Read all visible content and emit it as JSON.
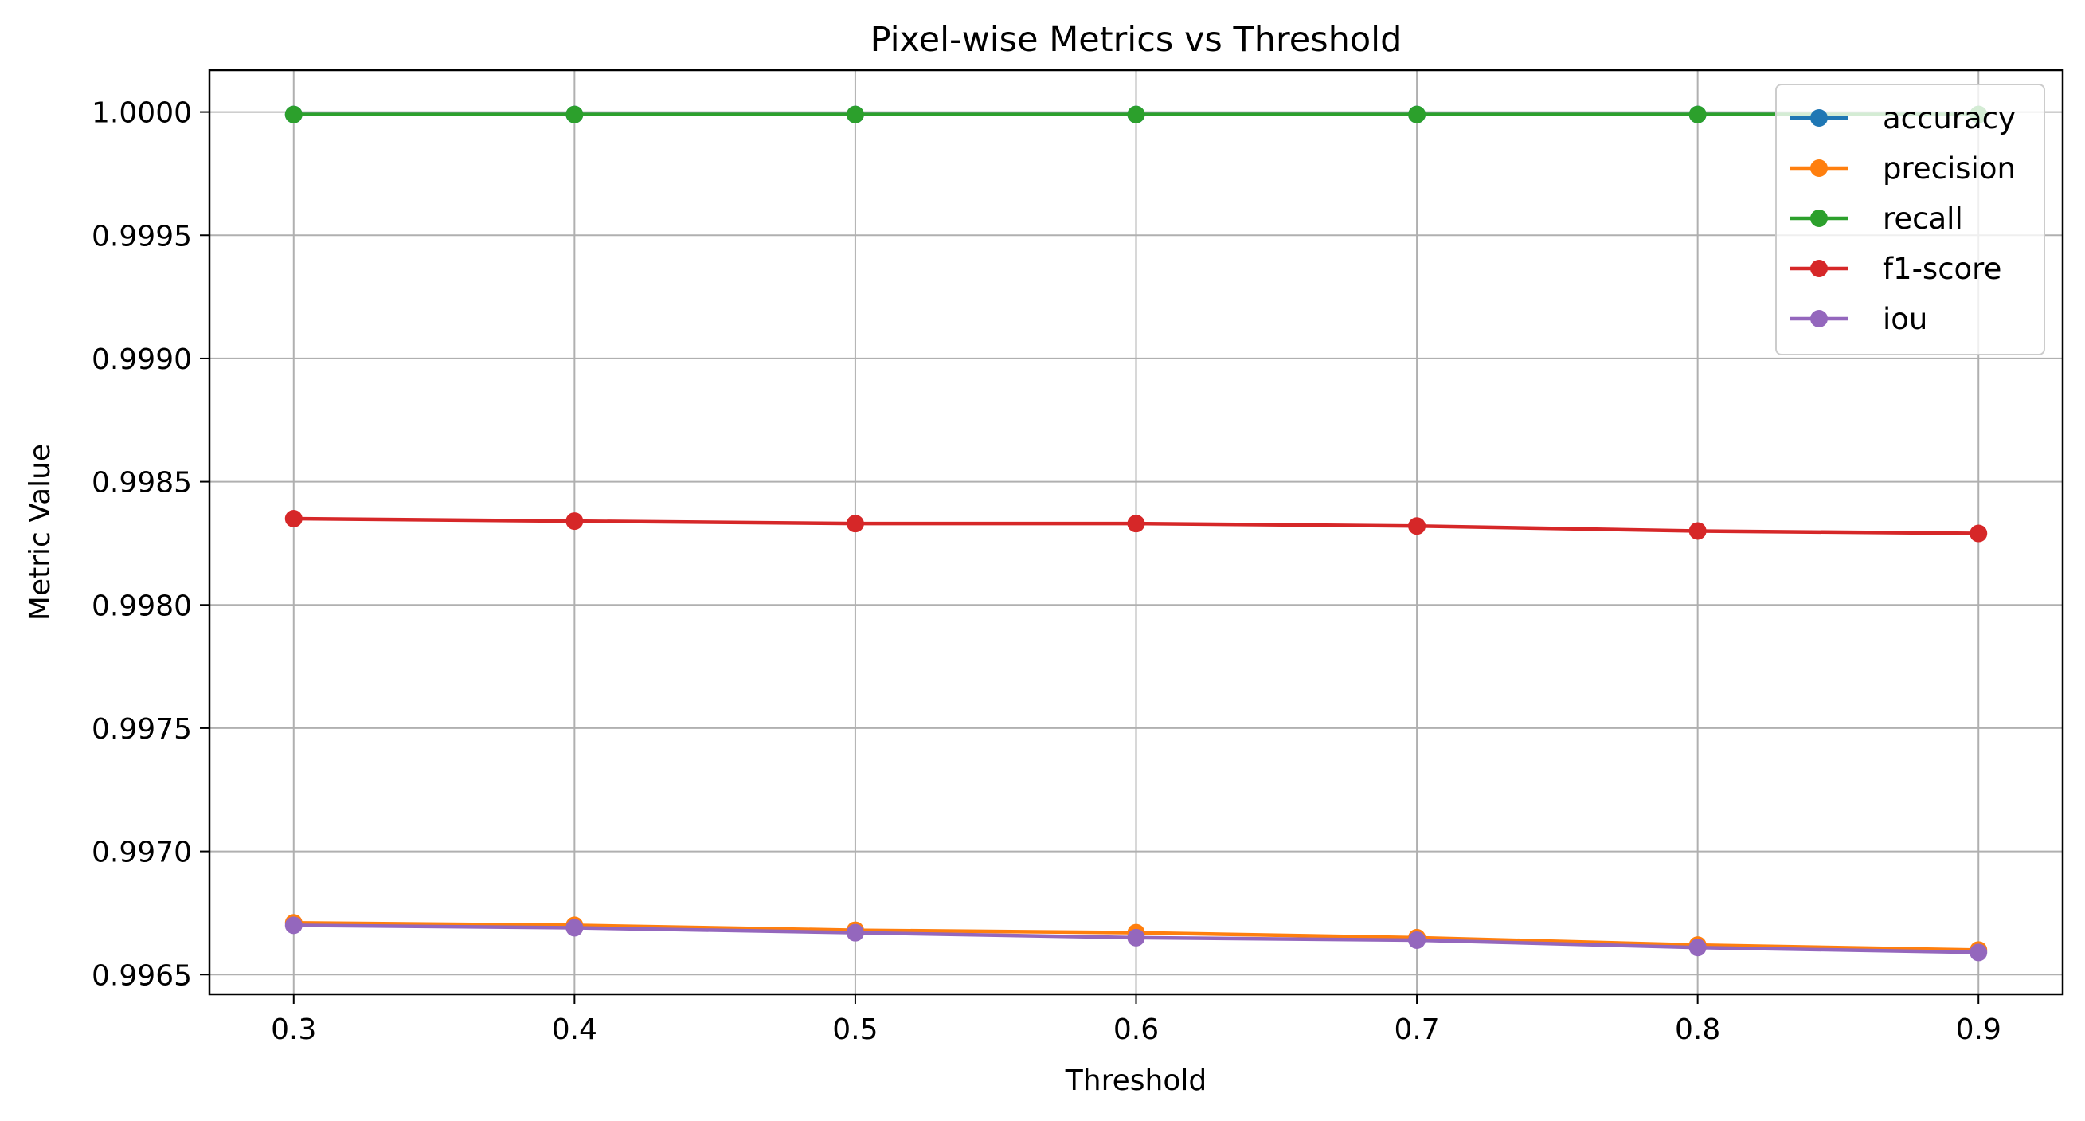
{
  "chart_data": {
    "type": "line",
    "title": "Pixel-wise Metrics vs Threshold",
    "xlabel": "Threshold",
    "ylabel": "Metric Value",
    "x": [
      0.3,
      0.4,
      0.5,
      0.6,
      0.7,
      0.8,
      0.9
    ],
    "xticks": [
      "0.3",
      "0.4",
      "0.5",
      "0.6",
      "0.7",
      "0.8",
      "0.9"
    ],
    "yticks": [
      "0.9965",
      "0.9970",
      "0.9975",
      "0.9980",
      "0.9985",
      "0.9990",
      "0.9995",
      "1.0000"
    ],
    "xlim": [
      0.27,
      0.93
    ],
    "ylim": [
      0.99642,
      1.00017
    ],
    "grid": true,
    "legend_position": "top-right",
    "series": [
      {
        "name": "accuracy",
        "color": "#1f77b4",
        "values": [
          0.99999,
          0.99999,
          0.99999,
          0.99999,
          0.99999,
          0.99999,
          0.99999
        ]
      },
      {
        "name": "precision",
        "color": "#ff7f0e",
        "values": [
          0.99671,
          0.9967,
          0.99668,
          0.99667,
          0.99665,
          0.99662,
          0.9966
        ]
      },
      {
        "name": "recall",
        "color": "#2ca02c",
        "values": [
          0.99999,
          0.99999,
          0.99999,
          0.99999,
          0.99999,
          0.99999,
          0.99999
        ]
      },
      {
        "name": "f1-score",
        "color": "#d62728",
        "values": [
          0.99835,
          0.99834,
          0.99833,
          0.99833,
          0.99832,
          0.9983,
          0.99829
        ]
      },
      {
        "name": "iou",
        "color": "#9467bd",
        "values": [
          0.9967,
          0.99669,
          0.99667,
          0.99665,
          0.99664,
          0.99661,
          0.99659
        ]
      }
    ]
  }
}
